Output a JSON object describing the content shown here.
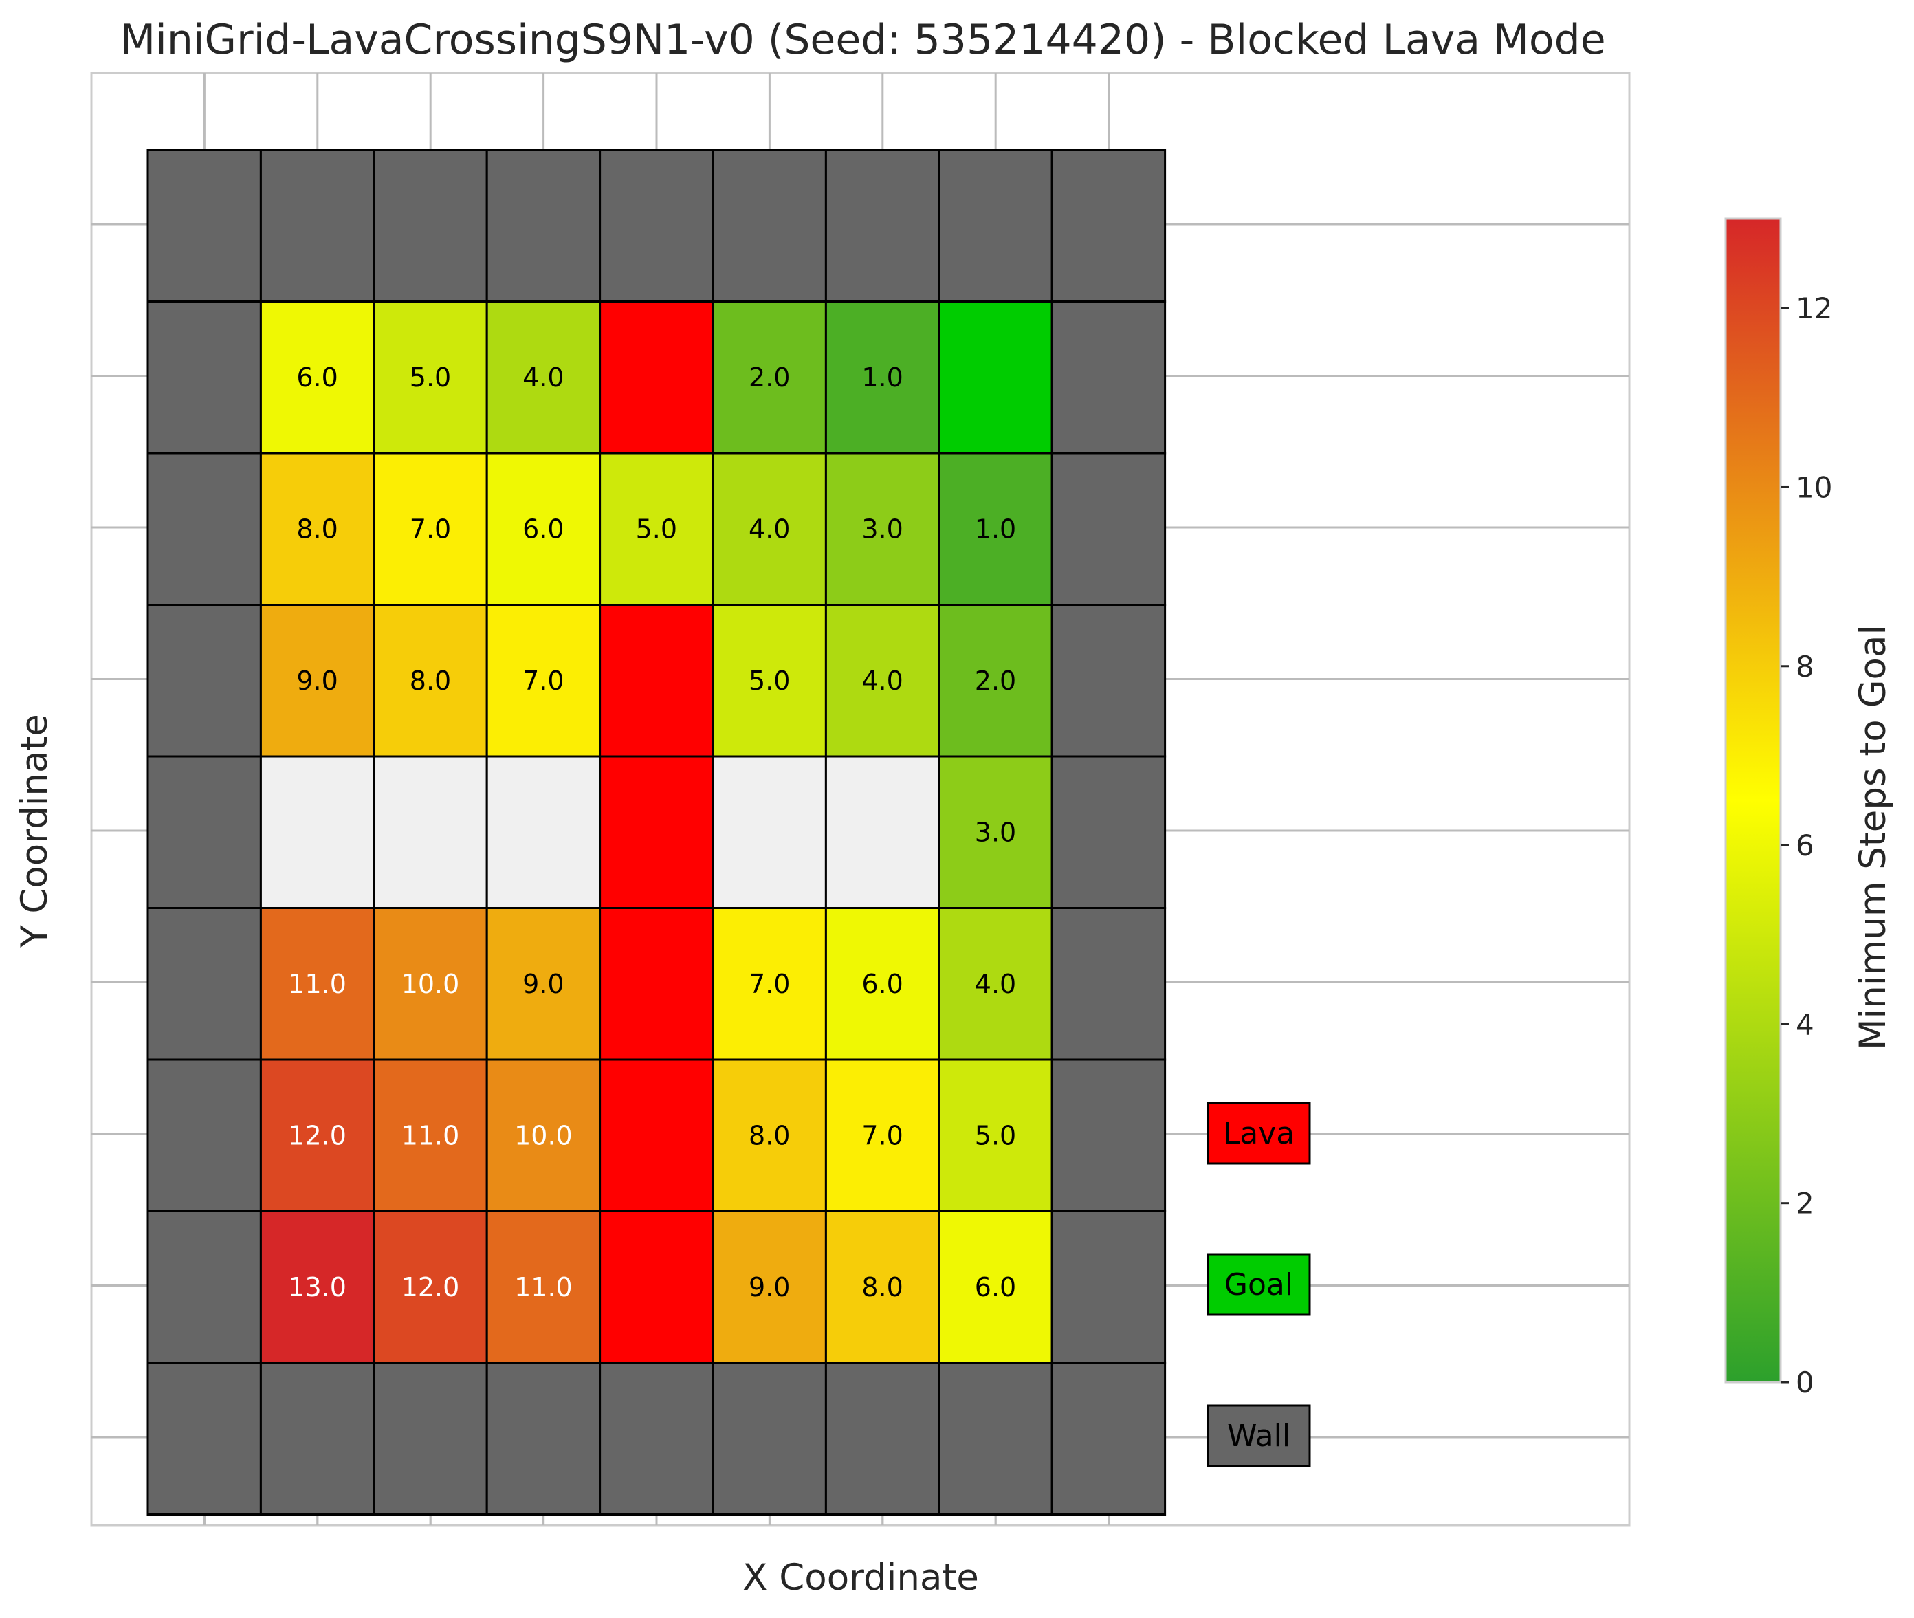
{
  "chart_data": {
    "type": "heatmap",
    "title": "MiniGrid-LavaCrossingS9N1-v0 (Seed: 535214420) - Blocked Lava Mode",
    "xlabel": "X Coordinate",
    "ylabel": "Y Coordinate",
    "colorbar": {
      "label": "Minimum Steps to Goal",
      "range": [
        0,
        13
      ],
      "ticks": [
        0,
        2,
        4,
        6,
        8,
        10,
        12
      ],
      "colors": [
        "#2ca02c",
        "#ffff00",
        "#d62728"
      ]
    },
    "grid_size": [
      9,
      9
    ],
    "cell_types": {
      "W": "Wall",
      "L": "Lava",
      "G": "Goal",
      "U": "Unreachable",
      "V": "Value"
    },
    "colors": {
      "wall": "#666666",
      "lava": "#ff0000",
      "goal": "#00cc00",
      "unreachable": "#f0f0f0"
    },
    "rows": [
      [
        "W",
        "W",
        "W",
        "W",
        "W",
        "W",
        "W",
        "W",
        "W"
      ],
      [
        "W",
        6,
        5,
        4,
        "L",
        2,
        1,
        "G",
        "W"
      ],
      [
        "W",
        8,
        7,
        6,
        5,
        4,
        3,
        1,
        "W"
      ],
      [
        "W",
        9,
        8,
        7,
        "L",
        5,
        4,
        2,
        "W"
      ],
      [
        "W",
        "U",
        "U",
        "U",
        "L",
        "U",
        "U",
        3,
        "W"
      ],
      [
        "W",
        11,
        10,
        9,
        "L",
        7,
        6,
        4,
        "W"
      ],
      [
        "W",
        12,
        11,
        10,
        "L",
        8,
        7,
        5,
        "W"
      ],
      [
        "W",
        13,
        12,
        11,
        "L",
        9,
        8,
        6,
        "W"
      ],
      [
        "W",
        "W",
        "W",
        "W",
        "W",
        "W",
        "W",
        "W",
        "W"
      ]
    ],
    "legend": [
      {
        "label": "Lava",
        "color": "#ff0000"
      },
      {
        "label": "Goal",
        "color": "#00cc00"
      },
      {
        "label": "Wall",
        "color": "#666666"
      }
    ],
    "grid": true
  }
}
